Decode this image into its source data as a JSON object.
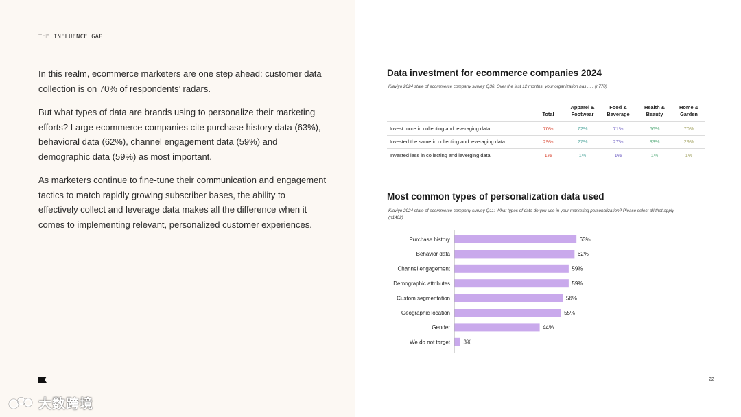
{
  "section_tag": "THE INFLUENCE GAP",
  "paragraphs": [
    "In this realm, ecommerce marketers are one step ahead: customer data collection is on 70% of respondents’ radars.",
    "But what types of data are brands using to personalize their marketing efforts? Large ecommerce companies cite purchase history data (63%), behavioral data (62%), channel engagement data (59%) and demographic data (59%) as most important.",
    "As marketers continue to fine-tune their communication and engagement tactics to match rapidly growing subscriber bases, the ability to effectively collect and leverage data makes all the difference when it comes to implementing relevant, personalized customer experiences."
  ],
  "page_number": "22",
  "watermark_text": "大数跨境",
  "table": {
    "title": "Data investment for ecommerce companies 2024",
    "source": "Klaviyo 2024 state of ecommerce company survey Q36: Over the last 12 months, your organization has . . . (n770)",
    "columns": [
      {
        "label": "Total",
        "color": "#d9442f"
      },
      {
        "label": "Apparel & Footwear",
        "color": "#55a9a0"
      },
      {
        "label": "Food & Beverage",
        "color": "#6f5fc4"
      },
      {
        "label": "Health & Beauty",
        "color": "#5fb082"
      },
      {
        "label": "Home & Garden",
        "color": "#a8a86a"
      }
    ],
    "rows": [
      {
        "label": "Invest more in collecting and leveraging data",
        "values": [
          "70%",
          "72%",
          "71%",
          "66%",
          "70%"
        ]
      },
      {
        "label": "Invested the same in collecting and leveraging data",
        "values": [
          "29%",
          "27%",
          "27%",
          "33%",
          "29%"
        ]
      },
      {
        "label": "Invested less in collecting and leverging data",
        "values": [
          "1%",
          "1%",
          "1%",
          "1%",
          "1%"
        ]
      }
    ]
  },
  "chart_heading": "Most common types of personalization data used",
  "chart_source": "Klaviyo 2024 state of ecommerce company survey Q11: What types of data do you use in your marketing personalization? Please select all that apply. (n1402)",
  "chart_data": {
    "type": "bar",
    "orientation": "horizontal",
    "categories": [
      "Purchase history",
      "Behavior data",
      "Channel engagement",
      "Demographic attributes",
      "Custom segmentation",
      "Geographic location",
      "Gender",
      "We do not target"
    ],
    "values": [
      63,
      62,
      59,
      59,
      56,
      55,
      44,
      3
    ],
    "data_labels": [
      "63%",
      "62%",
      "59%",
      "59%",
      "56%",
      "55%",
      "44%",
      "3%"
    ],
    "xlim": [
      0,
      100
    ],
    "bar_color": "#c9a9ec",
    "grid": false
  }
}
